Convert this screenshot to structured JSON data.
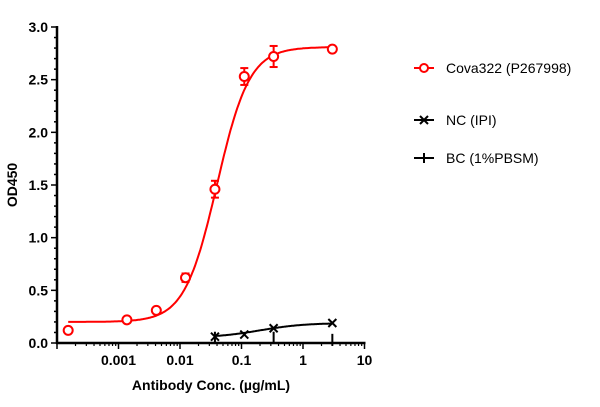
{
  "chart_data": {
    "type": "scatter",
    "title": "",
    "xlabel": "Antibody Conc. (µg/mL)",
    "ylabel": "OD450",
    "xscale": "log",
    "xlim": [
      0.0001,
      10
    ],
    "ylim": [
      0,
      3.0
    ],
    "x_ticks": [
      0.001,
      0.01,
      0.1,
      1,
      10
    ],
    "x_tick_labels": [
      "0.001",
      "0.01",
      "0.1",
      "1",
      "10"
    ],
    "y_ticks": [
      0,
      0.5,
      1.0,
      1.5,
      2.0,
      2.5,
      3.0
    ],
    "y_tick_labels": [
      "0.0",
      "0.5",
      "1.0",
      "1.5",
      "2.0",
      "2.5",
      "3.0"
    ],
    "grid": false,
    "legend_position": "right",
    "series": [
      {
        "name": "Cova322 (P267998)",
        "color": "#ff0000",
        "marker": "open-circle",
        "x": [
          0.000152,
          0.00137,
          0.00412,
          0.0123,
          0.037,
          0.111,
          0.333,
          3
        ],
        "y": [
          0.12,
          0.22,
          0.31,
          0.62,
          1.46,
          2.53,
          2.72,
          2.79
        ],
        "error": [
          0,
          0.01,
          0.01,
          0.04,
          0.08,
          0.08,
          0.1,
          0.01
        ],
        "fit": "sigmoidal"
      },
      {
        "name": "NC (IPI)",
        "color": "#000000",
        "marker": "x",
        "x": [
          0.037,
          0.111,
          0.333,
          3
        ],
        "y": [
          0.06,
          0.08,
          0.14,
          0.19
        ],
        "fit": "sigmoidal"
      },
      {
        "name": "BC (1%PBSM)",
        "color": "#000000",
        "marker": "plus",
        "x": [
          0.037,
          0.333,
          3
        ],
        "y": [
          0.05,
          0.05,
          0.03
        ]
      }
    ]
  }
}
